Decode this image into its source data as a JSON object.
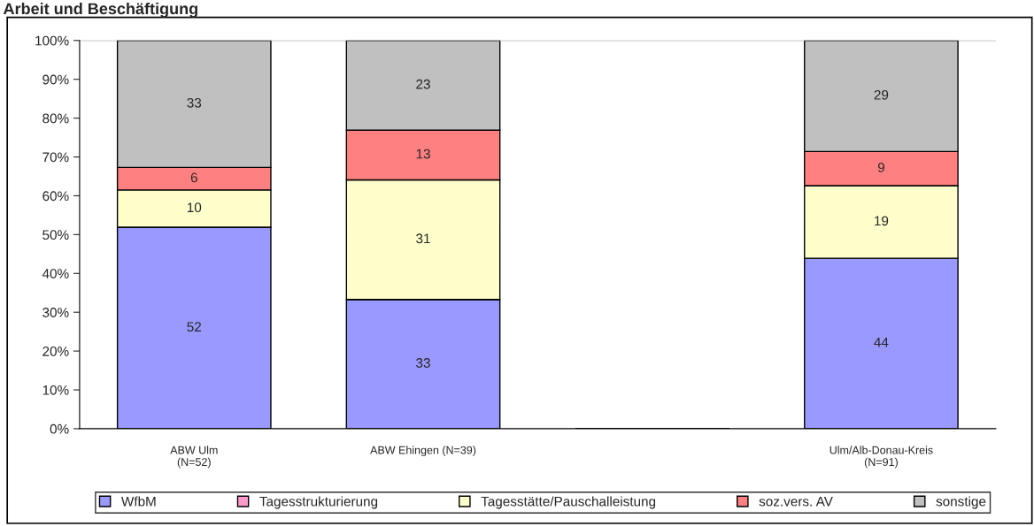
{
  "chart_data": {
    "type": "bar",
    "title": "Arbeit und Beschäftigung",
    "stacked": true,
    "categories": [
      "ABW Ulm\n(N=52)",
      "ABW Ehingen (N=39)",
      null,
      "Ulm/Alb-Donau-Kreis\n(N=91)"
    ],
    "series": [
      {
        "name": "WfbM",
        "color": "#9999ff",
        "values": [
          51.9,
          33.3,
          null,
          43.9
        ],
        "value_labels": [
          "52",
          "33",
          null,
          "44"
        ]
      },
      {
        "name": "Tagesstrukturierung",
        "color": "#ff99cc",
        "values": [
          0,
          0,
          null,
          0
        ],
        "value_labels": [
          null,
          null,
          null,
          null
        ]
      },
      {
        "name": "Tagesstätte/Pauschalleistung",
        "color": "#ffffcc",
        "values": [
          9.6,
          30.8,
          null,
          18.7
        ],
        "value_labels": [
          "10",
          "31",
          null,
          "19"
        ]
      },
      {
        "name": "soz.vers. AV",
        "color": "#ff8080",
        "values": [
          5.8,
          12.8,
          null,
          8.8
        ],
        "value_labels": [
          "6",
          "13",
          null,
          "9"
        ]
      },
      {
        "name": "sonstige",
        "color": "#c0c0c0",
        "values": [
          32.7,
          23.1,
          null,
          28.6
        ],
        "value_labels": [
          "33",
          "23",
          null,
          "29"
        ]
      }
    ],
    "ylim": [
      0,
      100
    ],
    "yticks": [
      {
        "value": 0,
        "label": "0%"
      },
      {
        "value": 10,
        "label": "10%"
      },
      {
        "value": 20,
        "label": "20%"
      },
      {
        "value": 30,
        "label": "30%"
      },
      {
        "value": 40,
        "label": "40%"
      },
      {
        "value": 50,
        "label": "50%"
      },
      {
        "value": 60,
        "label": "60%"
      },
      {
        "value": 70,
        "label": "70%"
      },
      {
        "value": 80,
        "label": "80%"
      },
      {
        "value": 90,
        "label": "90%"
      },
      {
        "value": 100,
        "label": "100%"
      }
    ],
    "grid": false,
    "legend": "bottom"
  }
}
